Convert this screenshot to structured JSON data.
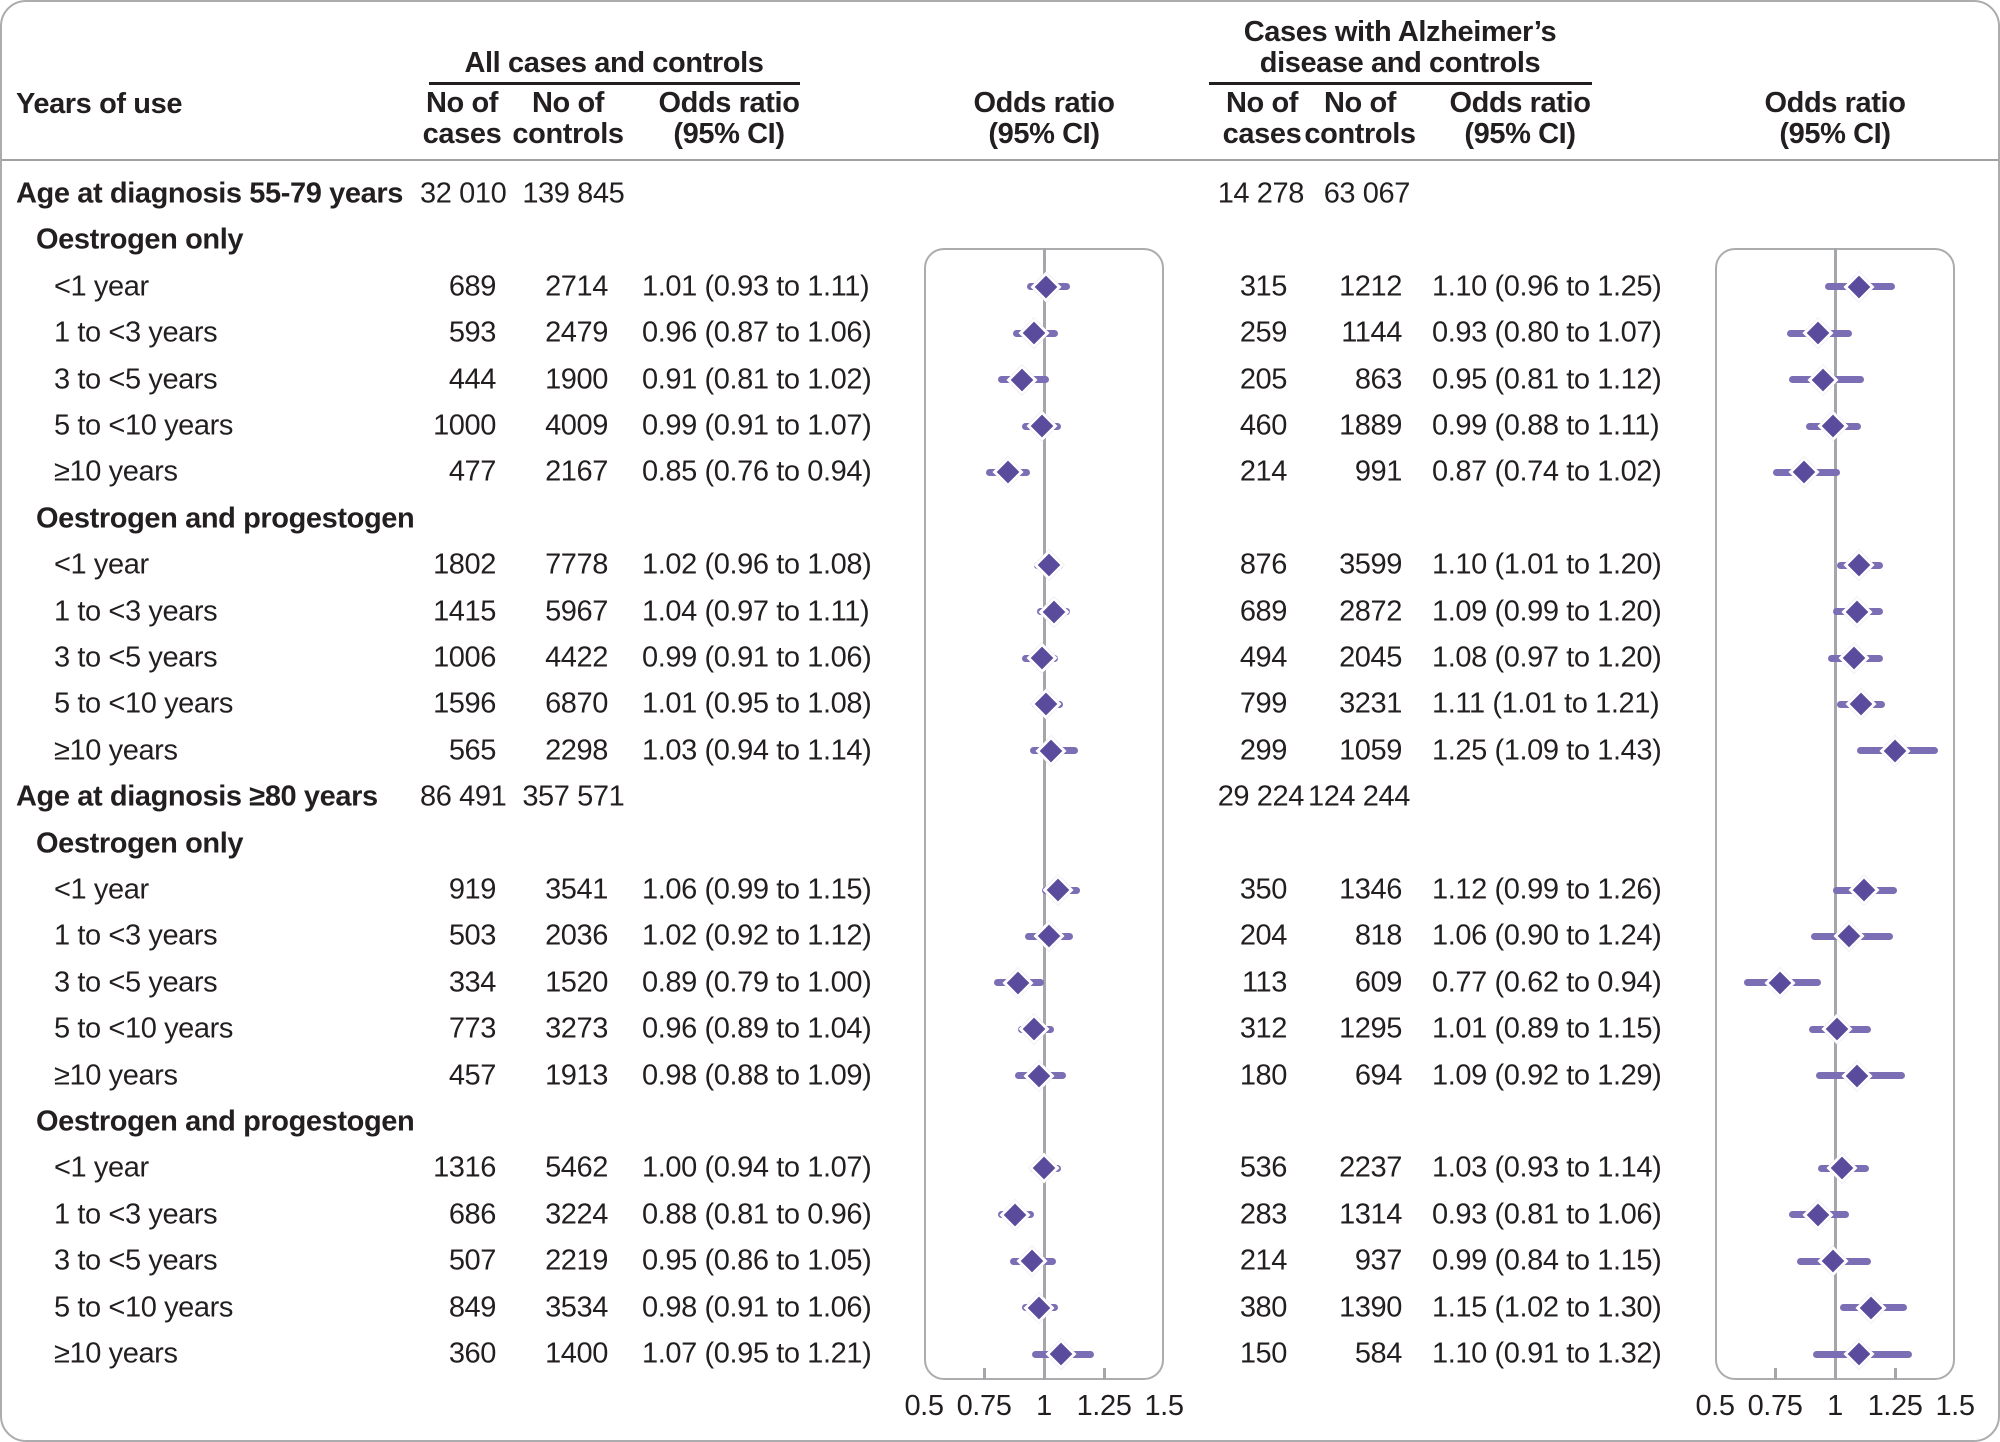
{
  "header": {
    "row_label": "Years of use",
    "panels": [
      {
        "title_lines": [
          "All cases and controls"
        ],
        "cases": "No of\ncases",
        "controls": "No of\ncontrols",
        "or": "Odds ratio\n(95% CI)",
        "plot_or": "Odds ratio\n(95% CI)"
      },
      {
        "title_lines": [
          "Cases with Alzheimer’s",
          "disease and controls"
        ],
        "cases": "No of\ncases",
        "controls": "No of\ncontrols",
        "or": "Odds ratio\n(95% CI)",
        "plot_or": "Odds ratio\n(95% CI)"
      }
    ]
  },
  "axis": {
    "range": [
      0.5,
      1.5
    ],
    "tick_values": [
      0.5,
      0.75,
      1,
      1.25,
      1.5
    ],
    "tick_labels": [
      "0.5",
      "0.75",
      "1",
      "1.25",
      "1.5"
    ],
    "minor_ticks": [
      0.75,
      1.25
    ],
    "reference": 1
  },
  "colors": {
    "diamond": "#5b4b9d",
    "ci_line": "#7b6eb5",
    "reference_line": "#a4a6a9",
    "text": "#231f20",
    "border": "#aaacae"
  },
  "rows": [
    {
      "type": "section",
      "label": "Age at diagnosis 55-79 years",
      "totals": {
        "all": {
          "cases": "32 010",
          "controls": "139 845"
        },
        "ad": {
          "cases": "14 278",
          "controls": "63 067"
        }
      }
    },
    {
      "type": "subheader",
      "label": "Oestrogen only"
    },
    {
      "type": "data",
      "label": "<1 year",
      "all": {
        "cases": "689",
        "controls": "2714",
        "or_text": "1.01 (0.93 to 1.11)",
        "or": 1.01,
        "low": 0.93,
        "high": 1.11
      },
      "ad": {
        "cases": "315",
        "controls": "1212",
        "or_text": "1.10 (0.96 to 1.25)",
        "or": 1.1,
        "low": 0.96,
        "high": 1.25
      }
    },
    {
      "type": "data",
      "label": "1 to <3 years",
      "all": {
        "cases": "593",
        "controls": "2479",
        "or_text": "0.96 (0.87 to 1.06)",
        "or": 0.96,
        "low": 0.87,
        "high": 1.06
      },
      "ad": {
        "cases": "259",
        "controls": "1144",
        "or_text": "0.93 (0.80 to 1.07)",
        "or": 0.93,
        "low": 0.8,
        "high": 1.07
      }
    },
    {
      "type": "data",
      "label": "3 to <5 years",
      "all": {
        "cases": "444",
        "controls": "1900",
        "or_text": "0.91 (0.81 to 1.02)",
        "or": 0.91,
        "low": 0.81,
        "high": 1.02
      },
      "ad": {
        "cases": "205",
        "controls": "863",
        "or_text": "0.95 (0.81 to 1.12)",
        "or": 0.95,
        "low": 0.81,
        "high": 1.12
      }
    },
    {
      "type": "data",
      "label": "5 to <10 years",
      "all": {
        "cases": "1000",
        "controls": "4009",
        "or_text": "0.99 (0.91 to 1.07)",
        "or": 0.99,
        "low": 0.91,
        "high": 1.07
      },
      "ad": {
        "cases": "460",
        "controls": "1889",
        "or_text": "0.99 (0.88 to 1.11)",
        "or": 0.99,
        "low": 0.88,
        "high": 1.11
      }
    },
    {
      "type": "data",
      "label": "≥10 years",
      "all": {
        "cases": "477",
        "controls": "2167",
        "or_text": "0.85 (0.76 to 0.94)",
        "or": 0.85,
        "low": 0.76,
        "high": 0.94
      },
      "ad": {
        "cases": "214",
        "controls": "991",
        "or_text": "0.87 (0.74 to 1.02)",
        "or": 0.87,
        "low": 0.74,
        "high": 1.02
      }
    },
    {
      "type": "subheader",
      "label": "Oestrogen and progestogen"
    },
    {
      "type": "data",
      "label": "<1 year",
      "all": {
        "cases": "1802",
        "controls": "7778",
        "or_text": "1.02 (0.96 to 1.08)",
        "or": 1.02,
        "low": 0.96,
        "high": 1.08
      },
      "ad": {
        "cases": "876",
        "controls": "3599",
        "or_text": "1.10 (1.01 to 1.20)",
        "or": 1.1,
        "low": 1.01,
        "high": 1.2
      }
    },
    {
      "type": "data",
      "label": "1 to <3 years",
      "all": {
        "cases": "1415",
        "controls": "5967",
        "or_text": "1.04 (0.97 to 1.11)",
        "or": 1.04,
        "low": 0.97,
        "high": 1.11
      },
      "ad": {
        "cases": "689",
        "controls": "2872",
        "or_text": "1.09 (0.99 to 1.20)",
        "or": 1.09,
        "low": 0.99,
        "high": 1.2
      }
    },
    {
      "type": "data",
      "label": "3 to <5 years",
      "all": {
        "cases": "1006",
        "controls": "4422",
        "or_text": "0.99 (0.91 to 1.06)",
        "or": 0.99,
        "low": 0.91,
        "high": 1.06
      },
      "ad": {
        "cases": "494",
        "controls": "2045",
        "or_text": "1.08 (0.97 to 1.20)",
        "or": 1.08,
        "low": 0.97,
        "high": 1.2
      }
    },
    {
      "type": "data",
      "label": "5 to <10 years",
      "all": {
        "cases": "1596",
        "controls": "6870",
        "or_text": "1.01 (0.95 to 1.08)",
        "or": 1.01,
        "low": 0.95,
        "high": 1.08
      },
      "ad": {
        "cases": "799",
        "controls": "3231",
        "or_text": "1.11 (1.01 to 1.21)",
        "or": 1.11,
        "low": 1.01,
        "high": 1.21
      }
    },
    {
      "type": "data",
      "label": "≥10 years",
      "all": {
        "cases": "565",
        "controls": "2298",
        "or_text": "1.03 (0.94 to 1.14)",
        "or": 1.03,
        "low": 0.94,
        "high": 1.14
      },
      "ad": {
        "cases": "299",
        "controls": "1059",
        "or_text": "1.25 (1.09 to 1.43)",
        "or": 1.25,
        "low": 1.09,
        "high": 1.43
      }
    },
    {
      "type": "section",
      "label": "Age at diagnosis ≥80 years",
      "totals": {
        "all": {
          "cases": "86 491",
          "controls": "357 571"
        },
        "ad": {
          "cases": "29 224",
          "controls": "124 244"
        }
      }
    },
    {
      "type": "subheader",
      "label": "Oestrogen only"
    },
    {
      "type": "data",
      "label": "<1 year",
      "all": {
        "cases": "919",
        "controls": "3541",
        "or_text": "1.06 (0.99 to 1.15)",
        "or": 1.06,
        "low": 0.99,
        "high": 1.15
      },
      "ad": {
        "cases": "350",
        "controls": "1346",
        "or_text": "1.12 (0.99 to 1.26)",
        "or": 1.12,
        "low": 0.99,
        "high": 1.26
      }
    },
    {
      "type": "data",
      "label": "1 to <3 years",
      "all": {
        "cases": "503",
        "controls": "2036",
        "or_text": "1.02 (0.92 to 1.12)",
        "or": 1.02,
        "low": 0.92,
        "high": 1.12
      },
      "ad": {
        "cases": "204",
        "controls": "818",
        "or_text": "1.06 (0.90 to 1.24)",
        "or": 1.06,
        "low": 0.9,
        "high": 1.24
      }
    },
    {
      "type": "data",
      "label": "3 to <5 years",
      "all": {
        "cases": "334",
        "controls": "1520",
        "or_text": "0.89 (0.79 to 1.00)",
        "or": 0.89,
        "low": 0.79,
        "high": 1.0
      },
      "ad": {
        "cases": "113",
        "controls": "609",
        "or_text": "0.77 (0.62 to 0.94)",
        "or": 0.77,
        "low": 0.62,
        "high": 0.94
      }
    },
    {
      "type": "data",
      "label": "5 to <10 years",
      "all": {
        "cases": "773",
        "controls": "3273",
        "or_text": "0.96 (0.89 to 1.04)",
        "or": 0.96,
        "low": 0.89,
        "high": 1.04
      },
      "ad": {
        "cases": "312",
        "controls": "1295",
        "or_text": "1.01 (0.89 to 1.15)",
        "or": 1.01,
        "low": 0.89,
        "high": 1.15
      }
    },
    {
      "type": "data",
      "label": "≥10 years",
      "all": {
        "cases": "457",
        "controls": "1913",
        "or_text": "0.98 (0.88 to 1.09)",
        "or": 0.98,
        "low": 0.88,
        "high": 1.09
      },
      "ad": {
        "cases": "180",
        "controls": "694",
        "or_text": "1.09 (0.92 to 1.29)",
        "or": 1.09,
        "low": 0.92,
        "high": 1.29
      }
    },
    {
      "type": "subheader",
      "label": "Oestrogen and progestogen"
    },
    {
      "type": "data",
      "label": "<1 year",
      "all": {
        "cases": "1316",
        "controls": "5462",
        "or_text": "1.00 (0.94 to 1.07)",
        "or": 1.0,
        "low": 0.94,
        "high": 1.07
      },
      "ad": {
        "cases": "536",
        "controls": "2237",
        "or_text": "1.03 (0.93 to 1.14)",
        "or": 1.03,
        "low": 0.93,
        "high": 1.14
      }
    },
    {
      "type": "data",
      "label": "1 to <3 years",
      "all": {
        "cases": "686",
        "controls": "3224",
        "or_text": "0.88 (0.81 to 0.96)",
        "or": 0.88,
        "low": 0.81,
        "high": 0.96
      },
      "ad": {
        "cases": "283",
        "controls": "1314",
        "or_text": "0.93 (0.81 to 1.06)",
        "or": 0.93,
        "low": 0.81,
        "high": 1.06
      }
    },
    {
      "type": "data",
      "label": "3 to <5 years",
      "all": {
        "cases": "507",
        "controls": "2219",
        "or_text": "0.95 (0.86 to 1.05)",
        "or": 0.95,
        "low": 0.86,
        "high": 1.05
      },
      "ad": {
        "cases": "214",
        "controls": "937",
        "or_text": "0.99 (0.84 to 1.15)",
        "or": 0.99,
        "low": 0.84,
        "high": 1.15
      }
    },
    {
      "type": "data",
      "label": "5 to <10 years",
      "all": {
        "cases": "849",
        "controls": "3534",
        "or_text": "0.98 (0.91 to 1.06)",
        "or": 0.98,
        "low": 0.91,
        "high": 1.06
      },
      "ad": {
        "cases": "380",
        "controls": "1390",
        "or_text": "1.15 (1.02 to 1.30)",
        "or": 1.15,
        "low": 1.02,
        "high": 1.3
      }
    },
    {
      "type": "data",
      "label": "≥10 years",
      "all": {
        "cases": "360",
        "controls": "1400",
        "or_text": "1.07 (0.95 to 1.21)",
        "or": 1.07,
        "low": 0.95,
        "high": 1.21
      },
      "ad": {
        "cases": "150",
        "controls": "584",
        "or_text": "1.10 (0.91 to 1.32)",
        "or": 1.1,
        "low": 0.91,
        "high": 1.32
      }
    }
  ],
  "chart_data": {
    "type": "scatter",
    "variant": "forest_plot",
    "title": "",
    "xlabel": "Odds ratio (95% CI)",
    "xlim": [
      0.5,
      1.5
    ],
    "x_ticks": [
      0.5,
      0.75,
      1,
      1.25,
      1.5
    ],
    "reference_line": 1,
    "legend_position": "none",
    "grid": false,
    "row_labels": [
      "<1 year",
      "1 to <3 years",
      "3 to <5 years",
      "5 to <10 years",
      "≥10 years"
    ],
    "panels": [
      "All cases and controls",
      "Cases with Alzheimer’s disease and controls"
    ],
    "sections": [
      {
        "section": "Age at diagnosis 55-79 years",
        "subgroup": "Oestrogen only",
        "all_cases_controls": {
          "or": [
            1.01,
            0.96,
            0.91,
            0.99,
            0.85
          ],
          "low": [
            0.93,
            0.87,
            0.81,
            0.91,
            0.76
          ],
          "high": [
            1.11,
            1.06,
            1.02,
            1.07,
            0.94
          ]
        },
        "alzheimers_cases_controls": {
          "or": [
            1.1,
            0.93,
            0.95,
            0.99,
            0.87
          ],
          "low": [
            0.96,
            0.8,
            0.81,
            0.88,
            0.74
          ],
          "high": [
            1.25,
            1.07,
            1.12,
            1.11,
            1.02
          ]
        }
      },
      {
        "section": "Age at diagnosis 55-79 years",
        "subgroup": "Oestrogen and progestogen",
        "all_cases_controls": {
          "or": [
            1.02,
            1.04,
            0.99,
            1.01,
            1.03
          ],
          "low": [
            0.96,
            0.97,
            0.91,
            0.95,
            0.94
          ],
          "high": [
            1.08,
            1.11,
            1.06,
            1.08,
            1.14
          ]
        },
        "alzheimers_cases_controls": {
          "or": [
            1.1,
            1.09,
            1.08,
            1.11,
            1.25
          ],
          "low": [
            1.01,
            0.99,
            0.97,
            1.01,
            1.09
          ],
          "high": [
            1.2,
            1.2,
            1.2,
            1.21,
            1.43
          ]
        }
      },
      {
        "section": "Age at diagnosis ≥80 years",
        "subgroup": "Oestrogen only",
        "all_cases_controls": {
          "or": [
            1.06,
            1.02,
            0.89,
            0.96,
            0.98
          ],
          "low": [
            0.99,
            0.92,
            0.79,
            0.89,
            0.88
          ],
          "high": [
            1.15,
            1.12,
            1.0,
            1.04,
            1.09
          ]
        },
        "alzheimers_cases_controls": {
          "or": [
            1.12,
            1.06,
            0.77,
            1.01,
            1.09
          ],
          "low": [
            0.99,
            0.9,
            0.62,
            0.89,
            0.92
          ],
          "high": [
            1.26,
            1.24,
            0.94,
            1.15,
            1.29
          ]
        }
      },
      {
        "section": "Age at diagnosis ≥80 years",
        "subgroup": "Oestrogen and progestogen",
        "all_cases_controls": {
          "or": [
            1.0,
            0.88,
            0.95,
            0.98,
            1.07
          ],
          "low": [
            0.94,
            0.81,
            0.86,
            0.91,
            0.95
          ],
          "high": [
            1.07,
            0.96,
            1.05,
            1.06,
            1.21
          ]
        },
        "alzheimers_cases_controls": {
          "or": [
            1.03,
            0.93,
            0.99,
            1.15,
            1.1
          ],
          "low": [
            0.93,
            0.81,
            0.84,
            1.02,
            0.91
          ],
          "high": [
            1.14,
            1.06,
            1.15,
            1.3,
            1.32
          ]
        }
      }
    ],
    "totals": [
      {
        "section": "Age at diagnosis 55-79 years",
        "all_cases": 32010,
        "all_controls": 139845,
        "ad_cases": 14278,
        "ad_controls": 63067
      },
      {
        "section": "Age at diagnosis ≥80 years",
        "all_cases": 86491,
        "all_controls": 357571,
        "ad_cases": 29224,
        "ad_controls": 124244
      }
    ]
  }
}
